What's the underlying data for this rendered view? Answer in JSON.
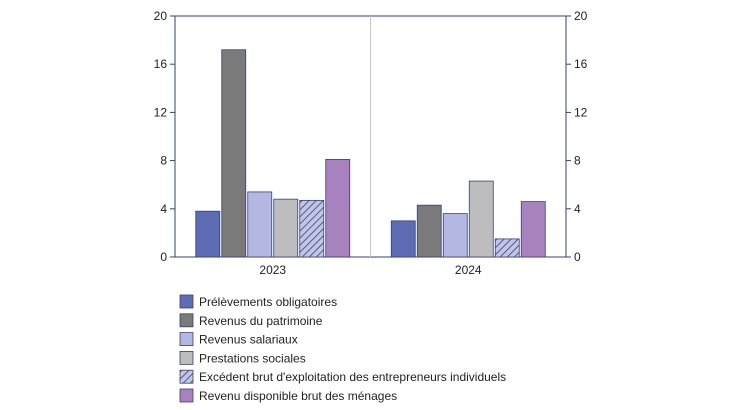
{
  "chart_data": {
    "type": "bar",
    "categories": [
      "2023",
      "2024"
    ],
    "ylim": [
      0,
      20
    ],
    "yticks": [
      0,
      4,
      8,
      12,
      16,
      20
    ],
    "secondary_axis": true,
    "grid": false,
    "legend_position": "bottom",
    "series": [
      {
        "name": "Prélèvements obligatoires",
        "values": [
          3.8,
          3.0
        ],
        "color": "#5e6cb4"
      },
      {
        "name": "Revenus du patrimoine",
        "values": [
          17.2,
          4.3
        ],
        "color": "#7a7a7a"
      },
      {
        "name": "Revenus salariaux",
        "values": [
          5.4,
          3.6
        ],
        "color": "#b3b8e3"
      },
      {
        "name": "Prestations sociales",
        "values": [
          4.8,
          6.3
        ],
        "color": "#bdbdbd"
      },
      {
        "name": "Excédent brut d'exploitation des entrepreneurs individuels",
        "values": [
          4.7,
          1.5
        ],
        "color": "#c2c6e6",
        "pattern": "hatch"
      },
      {
        "name": "Revenu disponible brut des ménages",
        "values": [
          8.1,
          4.6
        ],
        "color": "#a882bf"
      }
    ]
  }
}
